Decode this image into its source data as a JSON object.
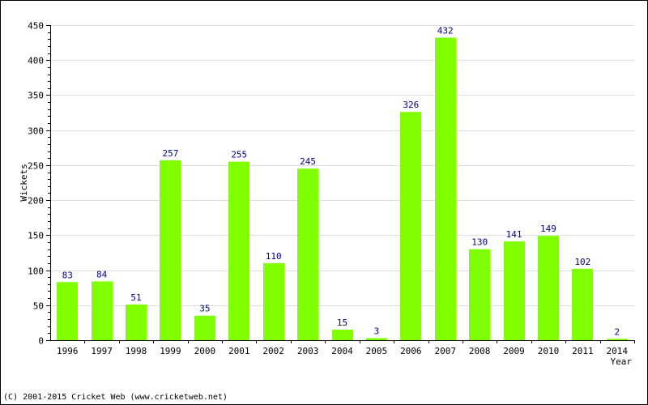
{
  "chart_data": {
    "type": "bar",
    "categories": [
      "1996",
      "1997",
      "1998",
      "1999",
      "2000",
      "2001",
      "2002",
      "2003",
      "2004",
      "2005",
      "2006",
      "2007",
      "2008",
      "2009",
      "2010",
      "2011",
      "2014"
    ],
    "values": [
      83,
      84,
      51,
      257,
      35,
      255,
      110,
      245,
      15,
      3,
      326,
      432,
      130,
      141,
      149,
      102,
      2
    ],
    "xlabel": "Year",
    "ylabel": "Wickets",
    "ylim": [
      0,
      450
    ],
    "yticks": [
      0,
      50,
      100,
      150,
      200,
      250,
      300,
      350,
      400,
      450
    ],
    "grid": true,
    "data_labels": true,
    "colors": {
      "bar": "#80FF00",
      "data_label": "#000080",
      "grid": "#DDDDDD",
      "axis": "#000000"
    }
  },
  "footer": {
    "copyright": "(C) 2001-2015 Cricket Web (www.cricketweb.net)"
  }
}
